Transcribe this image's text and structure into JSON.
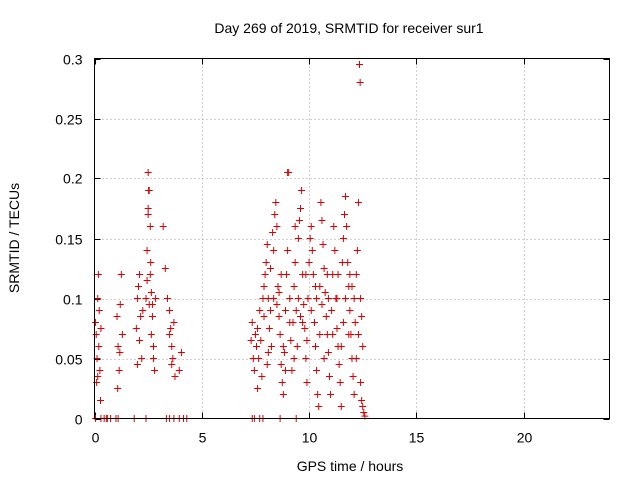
{
  "chart_data": {
    "type": "scatter",
    "title": "Day 269 of 2019, SRMTID for receiver sur1",
    "xlabel": "GPS time / hours",
    "ylabel": "SRMTID / TECUs",
    "xlim": [
      0,
      24
    ],
    "ylim": [
      0,
      0.3
    ],
    "xticks": [
      0,
      5,
      10,
      15,
      20
    ],
    "xtick_labels": [
      "0",
      "5",
      "10",
      "15",
      "20"
    ],
    "yticks": [
      0,
      0.05,
      0.1,
      0.15,
      0.2,
      0.25,
      0.3
    ],
    "ytick_labels": [
      "0",
      "0.05",
      "0.1",
      "0.15",
      "0.2",
      "0.25",
      "0.3"
    ],
    "grid": true,
    "marker": "+",
    "color": "#dd0000",
    "series": [
      {
        "name": "sur1",
        "points": [
          [
            0.05,
            0.08
          ],
          [
            0.08,
            0.07
          ],
          [
            0.1,
            0.03
          ],
          [
            0.12,
            0.05
          ],
          [
            0.15,
            0.1
          ],
          [
            0.18,
            0.12
          ],
          [
            0.2,
            0.06
          ],
          [
            0.22,
            0.09
          ],
          [
            0.25,
            0.04
          ],
          [
            0.28,
            0.015
          ],
          [
            0.3,
            0.075
          ],
          [
            0.15,
            0.035
          ],
          [
            0.05,
            0.0
          ],
          [
            0.3,
            0.0
          ],
          [
            0.45,
            0.0
          ],
          [
            0.55,
            0.0
          ],
          [
            0.6,
            0.0
          ],
          [
            0.75,
            0.0
          ],
          [
            1.0,
            0.0
          ],
          [
            1.1,
            0.0
          ],
          [
            1.85,
            0.0
          ],
          [
            2.4,
            0.0
          ],
          [
            3.35,
            0.0
          ],
          [
            3.5,
            0.0
          ],
          [
            3.7,
            0.0
          ],
          [
            3.95,
            0.0
          ],
          [
            4.15,
            0.0
          ],
          [
            4.3,
            0.0
          ],
          [
            7.35,
            0.0
          ],
          [
            7.45,
            0.0
          ],
          [
            7.7,
            0.0
          ],
          [
            7.85,
            0.0
          ],
          [
            8.65,
            0.0
          ],
          [
            9.4,
            0.0
          ],
          [
            1.05,
            0.085
          ],
          [
            1.1,
            0.06
          ],
          [
            1.15,
            0.04
          ],
          [
            1.2,
            0.095
          ],
          [
            1.25,
            0.12
          ],
          [
            1.3,
            0.07
          ],
          [
            1.08,
            0.025
          ],
          [
            1.18,
            0.055
          ],
          [
            1.95,
            0.075
          ],
          [
            2.0,
            0.1
          ],
          [
            2.05,
            0.11
          ],
          [
            2.1,
            0.12
          ],
          [
            2.15,
            0.085
          ],
          [
            2.2,
            0.05
          ],
          [
            2.25,
            0.09
          ],
          [
            2.0,
            0.045
          ],
          [
            2.1,
            0.065
          ],
          [
            2.4,
            0.1
          ],
          [
            2.45,
            0.14
          ],
          [
            2.5,
            0.175
          ],
          [
            2.5,
            0.205
          ],
          [
            2.55,
            0.19
          ],
          [
            2.6,
            0.16
          ],
          [
            2.62,
            0.13
          ],
          [
            2.65,
            0.105
          ],
          [
            2.7,
            0.085
          ],
          [
            2.75,
            0.06
          ],
          [
            2.8,
            0.04
          ],
          [
            2.85,
            0.1
          ],
          [
            2.55,
            0.095
          ],
          [
            2.65,
            0.07
          ],
          [
            2.45,
            0.115
          ],
          [
            2.6,
            0.12
          ],
          [
            2.7,
            0.095
          ],
          [
            2.75,
            0.05
          ],
          [
            2.5,
            0.17
          ],
          [
            2.52,
            0.19
          ],
          [
            3.2,
            0.16
          ],
          [
            3.3,
            0.125
          ],
          [
            3.4,
            0.1
          ],
          [
            3.5,
            0.09
          ],
          [
            3.55,
            0.075
          ],
          [
            3.6,
            0.06
          ],
          [
            3.65,
            0.05
          ],
          [
            3.7,
            0.08
          ],
          [
            3.75,
            0.035
          ],
          [
            3.5,
            0.07
          ],
          [
            3.6,
            0.045
          ],
          [
            3.95,
            0.04
          ],
          [
            4.05,
            0.055
          ],
          [
            7.3,
            0.065
          ],
          [
            7.35,
            0.08
          ],
          [
            7.4,
            0.05
          ],
          [
            7.45,
            0.04
          ],
          [
            7.5,
            0.07
          ],
          [
            7.55,
            0.06
          ],
          [
            7.6,
            0.025
          ],
          [
            7.65,
            0.05
          ],
          [
            7.7,
            0.09
          ],
          [
            7.75,
            0.065
          ],
          [
            7.8,
            0.035
          ],
          [
            7.85,
            0.1
          ],
          [
            7.9,
            0.11
          ],
          [
            7.95,
            0.12
          ],
          [
            8.0,
            0.13
          ],
          [
            8.05,
            0.145
          ],
          [
            8.1,
            0.1
          ],
          [
            8.15,
            0.075
          ],
          [
            8.2,
            0.09
          ],
          [
            8.25,
            0.06
          ],
          [
            8.3,
            0.155
          ],
          [
            8.35,
            0.14
          ],
          [
            8.4,
            0.17
          ],
          [
            8.45,
            0.18
          ],
          [
            8.5,
            0.16
          ],
          [
            8.55,
            0.11
          ],
          [
            8.6,
            0.085
          ],
          [
            8.65,
            0.07
          ],
          [
            8.7,
            0.045
          ],
          [
            8.75,
            0.03
          ],
          [
            8.8,
            0.02
          ],
          [
            8.85,
            0.055
          ],
          [
            8.9,
            0.09
          ],
          [
            8.95,
            0.12
          ],
          [
            9.0,
            0.205
          ],
          [
            9.0,
            0.14
          ],
          [
            9.05,
            0.205
          ],
          [
            9.1,
            0.1
          ],
          [
            9.15,
            0.065
          ],
          [
            9.2,
            0.04
          ],
          [
            9.25,
            0.08
          ],
          [
            9.3,
            0.11
          ],
          [
            9.35,
            0.13
          ],
          [
            9.4,
            0.09
          ],
          [
            9.45,
            0.06
          ],
          [
            9.5,
            0.15
          ],
          [
            9.55,
            0.165
          ],
          [
            9.6,
            0.175
          ],
          [
            9.65,
            0.19
          ],
          [
            9.7,
            0.12
          ],
          [
            9.75,
            0.095
          ],
          [
            9.8,
            0.075
          ],
          [
            9.85,
            0.05
          ],
          [
            9.9,
            0.03
          ],
          [
            9.95,
            0.1
          ],
          [
            10.0,
            0.13
          ],
          [
            10.05,
            0.15
          ],
          [
            10.1,
            0.16
          ],
          [
            10.15,
            0.14
          ],
          [
            10.2,
            0.12
          ],
          [
            10.25,
            0.08
          ],
          [
            10.3,
            0.06
          ],
          [
            10.35,
            0.04
          ],
          [
            10.4,
            0.02
          ],
          [
            10.45,
            0.01
          ],
          [
            10.5,
            0.11
          ],
          [
            10.55,
            0.18
          ],
          [
            10.6,
            0.165
          ],
          [
            10.65,
            0.145
          ],
          [
            10.7,
            0.125
          ],
          [
            10.75,
            0.105
          ],
          [
            10.8,
            0.085
          ],
          [
            10.85,
            0.07
          ],
          [
            10.9,
            0.055
          ],
          [
            10.95,
            0.035
          ],
          [
            11.0,
            0.02
          ],
          [
            11.05,
            0.09
          ],
          [
            11.1,
            0.12
          ],
          [
            11.15,
            0.16
          ],
          [
            11.2,
            0.14
          ],
          [
            11.25,
            0.1
          ],
          [
            11.3,
            0.075
          ],
          [
            11.35,
            0.06
          ],
          [
            11.4,
            0.045
          ],
          [
            11.45,
            0.03
          ],
          [
            11.5,
            0.01
          ],
          [
            11.55,
            0.13
          ],
          [
            11.6,
            0.15
          ],
          [
            11.65,
            0.17
          ],
          [
            11.7,
            0.185
          ],
          [
            11.75,
            0.16
          ],
          [
            11.8,
            0.13
          ],
          [
            11.85,
            0.11
          ],
          [
            11.9,
            0.09
          ],
          [
            11.95,
            0.07
          ],
          [
            12.0,
            0.05
          ],
          [
            12.05,
            0.035
          ],
          [
            12.1,
            0.02
          ],
          [
            12.15,
            0.08
          ],
          [
            12.2,
            0.12
          ],
          [
            12.25,
            0.14
          ],
          [
            12.3,
            0.18
          ],
          [
            12.35,
            0.295
          ],
          [
            12.38,
            0.28
          ],
          [
            12.4,
            0.03
          ],
          [
            12.45,
            0.015
          ],
          [
            12.5,
            0.01
          ],
          [
            12.55,
            0.005
          ],
          [
            12.6,
            0.002
          ],
          [
            12.4,
            0.1
          ],
          [
            12.45,
            0.085
          ],
          [
            12.5,
            0.06
          ],
          [
            7.6,
            0.075
          ],
          [
            7.9,
            0.085
          ],
          [
            8.05,
            0.045
          ],
          [
            8.2,
            0.125
          ],
          [
            8.5,
            0.095
          ],
          [
            8.7,
            0.12
          ],
          [
            8.8,
            0.06
          ],
          [
            9.1,
            0.08
          ],
          [
            9.3,
            0.05
          ],
          [
            9.5,
            0.1
          ],
          [
            9.7,
            0.08
          ],
          [
            9.9,
            0.065
          ],
          [
            10.1,
            0.09
          ],
          [
            10.3,
            0.11
          ],
          [
            10.5,
            0.07
          ],
          [
            10.7,
            0.05
          ],
          [
            10.9,
            0.1
          ],
          [
            11.1,
            0.07
          ],
          [
            11.3,
            0.1
          ],
          [
            11.5,
            0.06
          ],
          [
            11.7,
            0.1
          ],
          [
            11.9,
            0.12
          ],
          [
            12.1,
            0.1
          ],
          [
            12.3,
            0.07
          ],
          [
            8.35,
            0.1
          ],
          [
            8.9,
            0.04
          ],
          [
            9.35,
            0.16
          ],
          [
            9.85,
            0.12
          ],
          [
            10.35,
            0.1
          ],
          [
            10.85,
            0.12
          ],
          [
            11.35,
            0.12
          ],
          [
            11.85,
            0.07
          ],
          [
            12.2,
            0.05
          ],
          [
            8.1,
            0.055
          ],
          [
            8.6,
            0.105
          ],
          [
            9.6,
            0.085
          ],
          [
            10.6,
            0.095
          ],
          [
            11.6,
            0.08
          ],
          [
            12.0,
            0.11
          ]
        ]
      }
    ]
  }
}
